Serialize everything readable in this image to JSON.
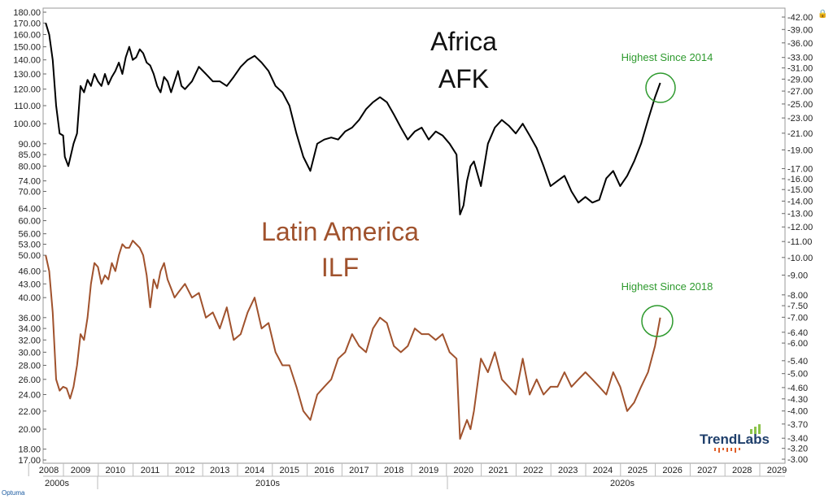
{
  "chart_data": {
    "type": "line",
    "x_labels": [
      "2008",
      "2009",
      "2010",
      "2011",
      "2012",
      "2013",
      "2014",
      "2015",
      "2016",
      "2017",
      "2018",
      "2019",
      "2020",
      "2021",
      "2022",
      "2023",
      "2024",
      "2025",
      "2026",
      "2027",
      "2028",
      "2029"
    ],
    "decades": [
      "2000s",
      "2010s",
      "2020s"
    ],
    "log_scale": true,
    "grid": false,
    "left_axis": {
      "ticks": [
        "180.00",
        "170.00",
        "160.00",
        "150.00",
        "140.00",
        "130.00",
        "120.00",
        "110.00",
        "100.00",
        "90.00",
        "85.00",
        "80.00",
        "74.00",
        "70.00",
        "64.00",
        "60.00",
        "56.00",
        "53.00",
        "50.00",
        "46.00",
        "43.00",
        "40.00",
        "36.00",
        "34.00",
        "32.00",
        "30.00",
        "28.00",
        "26.00",
        "24.00",
        "22.00",
        "20.00",
        "18.00",
        "17.00"
      ]
    },
    "right_axis": {
      "ticks": [
        "42.00",
        "39.00",
        "36.00",
        "33.00",
        "31.00",
        "29.00",
        "27.00",
        "25.00",
        "23.00",
        "21.00",
        "19.00",
        "17.00",
        "16.00",
        "15.00",
        "14.00",
        "13.00",
        "12.00",
        "11.00",
        "10.00",
        "9.00",
        "8.00",
        "7.50",
        "7.00",
        "6.40",
        "6.00",
        "5.40",
        "5.00",
        "4.60",
        "4.30",
        "4.00",
        "3.70",
        "3.40",
        "3.20",
        "3.00"
      ]
    },
    "series": [
      {
        "name": "Africa AFK",
        "color": "#000000",
        "axis": "left",
        "x": [
          2008.0,
          2008.1,
          2008.2,
          2008.3,
          2008.4,
          2008.5,
          2008.55,
          2008.65,
          2008.8,
          2008.9,
          2009.0,
          2009.1,
          2009.2,
          2009.3,
          2009.4,
          2009.5,
          2009.6,
          2009.7,
          2009.8,
          2009.9,
          2010.0,
          2010.1,
          2010.2,
          2010.3,
          2010.4,
          2010.5,
          2010.6,
          2010.7,
          2010.8,
          2010.9,
          2011.0,
          2011.1,
          2011.2,
          2011.3,
          2011.4,
          2011.5,
          2011.6,
          2011.7,
          2011.8,
          2011.9,
          2012.0,
          2012.2,
          2012.4,
          2012.6,
          2012.8,
          2013.0,
          2013.2,
          2013.4,
          2013.6,
          2013.8,
          2014.0,
          2014.2,
          2014.4,
          2014.6,
          2014.8,
          2015.0,
          2015.2,
          2015.4,
          2015.6,
          2015.8,
          2016.0,
          2016.2,
          2016.4,
          2016.6,
          2016.8,
          2017.0,
          2017.2,
          2017.4,
          2017.6,
          2017.8,
          2018.0,
          2018.2,
          2018.4,
          2018.6,
          2018.8,
          2019.0,
          2019.2,
          2019.4,
          2019.6,
          2019.8,
          2019.9,
          2020.0,
          2020.1,
          2020.2,
          2020.3,
          2020.5,
          2020.7,
          2020.9,
          2021.1,
          2021.3,
          2021.5,
          2021.7,
          2021.9,
          2022.1,
          2022.3,
          2022.5,
          2022.7,
          2022.9,
          2023.1,
          2023.3,
          2023.5,
          2023.7,
          2023.9,
          2024.1,
          2024.3,
          2024.5,
          2024.7,
          2024.9,
          2025.1,
          2025.3,
          2025.5,
          2025.65
        ],
        "y": [
          170,
          160,
          140,
          110,
          95,
          94,
          84,
          80,
          90,
          95,
          122,
          118,
          126,
          122,
          130,
          125,
          122,
          130,
          123,
          128,
          132,
          138,
          130,
          142,
          150,
          140,
          142,
          148,
          145,
          138,
          136,
          130,
          122,
          118,
          128,
          125,
          118,
          125,
          132,
          122,
          120,
          125,
          135,
          130,
          125,
          125,
          122,
          128,
          135,
          140,
          143,
          138,
          132,
          122,
          118,
          110,
          95,
          84,
          78,
          90,
          92,
          93,
          92,
          96,
          98,
          102,
          108,
          112,
          115,
          112,
          105,
          98,
          92,
          96,
          98,
          92,
          96,
          94,
          90,
          85,
          62,
          65,
          74,
          80,
          82,
          72,
          90,
          98,
          102,
          99,
          95,
          100,
          94,
          88,
          80,
          72,
          74,
          76,
          70,
          66,
          68,
          66,
          67,
          75,
          78,
          72,
          76,
          82,
          90,
          102,
          115,
          124
        ]
      },
      {
        "name": "Latin America ILF",
        "color": "#a0522d",
        "axis": "left",
        "x": [
          2008.0,
          2008.1,
          2008.2,
          2008.3,
          2008.4,
          2008.5,
          2008.6,
          2008.7,
          2008.8,
          2008.9,
          2009.0,
          2009.1,
          2009.2,
          2009.3,
          2009.4,
          2009.5,
          2009.6,
          2009.7,
          2009.8,
          2009.9,
          2010.0,
          2010.1,
          2010.2,
          2010.3,
          2010.4,
          2010.5,
          2010.6,
          2010.7,
          2010.8,
          2010.9,
          2011.0,
          2011.1,
          2011.2,
          2011.3,
          2011.4,
          2011.5,
          2011.6,
          2011.7,
          2011.8,
          2011.9,
          2012.0,
          2012.2,
          2012.4,
          2012.6,
          2012.8,
          2013.0,
          2013.2,
          2013.4,
          2013.6,
          2013.8,
          2014.0,
          2014.2,
          2014.4,
          2014.6,
          2014.8,
          2015.0,
          2015.2,
          2015.4,
          2015.6,
          2015.8,
          2016.0,
          2016.2,
          2016.4,
          2016.6,
          2016.8,
          2017.0,
          2017.2,
          2017.4,
          2017.6,
          2017.8,
          2018.0,
          2018.2,
          2018.4,
          2018.6,
          2018.8,
          2019.0,
          2019.2,
          2019.4,
          2019.6,
          2019.8,
          2019.9,
          2020.0,
          2020.1,
          2020.2,
          2020.3,
          2020.5,
          2020.7,
          2020.9,
          2021.1,
          2021.3,
          2021.5,
          2021.7,
          2021.9,
          2022.1,
          2022.3,
          2022.5,
          2022.7,
          2022.9,
          2023.1,
          2023.3,
          2023.5,
          2023.7,
          2023.9,
          2024.1,
          2024.3,
          2024.5,
          2024.7,
          2024.9,
          2025.1,
          2025.3,
          2025.5,
          2025.65
        ],
        "y": [
          50,
          46,
          37,
          26,
          24.5,
          25,
          24.8,
          23.5,
          25,
          28,
          33,
          32,
          36,
          43,
          48,
          47,
          43,
          45,
          44,
          48,
          46,
          50,
          53,
          52,
          52,
          54,
          53,
          52,
          50,
          45,
          38,
          44,
          42,
          46,
          48,
          44,
          42,
          40,
          41,
          42,
          43,
          40,
          41,
          36,
          37,
          34,
          38,
          32,
          33,
          37,
          40,
          34,
          35,
          30,
          28,
          28,
          25,
          22,
          21,
          24,
          25,
          26,
          29,
          30,
          33,
          31,
          30,
          34,
          36,
          35,
          31,
          30,
          31,
          34,
          33,
          33,
          32,
          33,
          30,
          29,
          19,
          20,
          21,
          20,
          22,
          29,
          27,
          30,
          26,
          25,
          24,
          29,
          24,
          26,
          24,
          25,
          25,
          27,
          25,
          26,
          27,
          26,
          25,
          24,
          27,
          25,
          22,
          23,
          25,
          27,
          31,
          36
        ]
      }
    ],
    "annotations": [
      {
        "text": "Africa",
        "series": "Africa AFK"
      },
      {
        "text": "AFK",
        "series": "Africa AFK"
      },
      {
        "text": "Latin America",
        "series": "Latin America ILF"
      },
      {
        "text": "ILF",
        "series": "Latin America ILF"
      },
      {
        "text": "Highest Since 2014",
        "series": "Africa AFK"
      },
      {
        "text": "Highest Since 2018",
        "series": "Latin America ILF"
      }
    ],
    "note_color": "#2e9a2e"
  },
  "logo": {
    "text": "TrendLabs"
  },
  "footer": {
    "brand": "Optuma"
  }
}
